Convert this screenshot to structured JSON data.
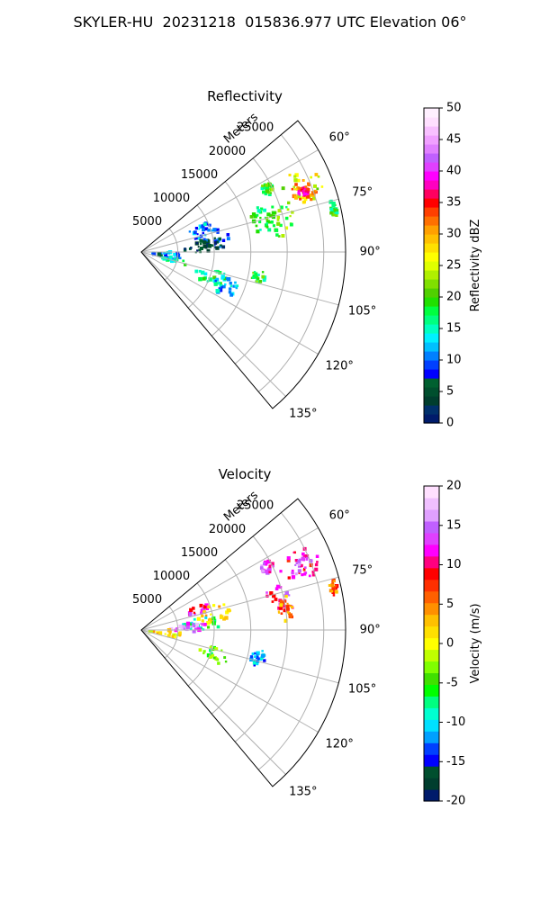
{
  "suptitle": "SKYLER-HU  20231218  015836.977 UTC Elevation 06°",
  "colors": {
    "grid": "#b0b0b0",
    "axis": "#000000",
    "ref_ramp": [
      "#001b6b",
      "#00306b",
      "#003e2e",
      "#004f2e",
      "#006030",
      "#0000ff",
      "#0040ff",
      "#0080ff",
      "#00c0ff",
      "#00f0ff",
      "#00ffc0",
      "#00ff80",
      "#00ff40",
      "#20e000",
      "#50d000",
      "#80e000",
      "#b0f000",
      "#e0ff00",
      "#ffff00",
      "#ffe000",
      "#ffc000",
      "#ffa000",
      "#ff7000",
      "#ff4000",
      "#ff0000",
      "#ff0060",
      "#ff00c0",
      "#ff00ff",
      "#e040ff",
      "#c060ff",
      "#e080ff",
      "#f0a0ff",
      "#f8c0ff",
      "#ffe0ff",
      "#fff0ff"
    ],
    "vel_ramp": [
      "#001b6b",
      "#003e2e",
      "#004f2e",
      "#0000ff",
      "#0040ff",
      "#00a0ff",
      "#00e0ff",
      "#00ffd0",
      "#00ff80",
      "#00ff00",
      "#40e000",
      "#80ff00",
      "#c0ff00",
      "#ffff00",
      "#ffe000",
      "#ffc000",
      "#ff9000",
      "#ff6000",
      "#ff3000",
      "#ff0000",
      "#ff0080",
      "#ff00ff",
      "#e040ff",
      "#c060ff",
      "#e0a0ff",
      "#f0c0ff",
      "#ffe0ff"
    ]
  },
  "chart_data": [
    {
      "type": "heatmap",
      "title": "Reflectivity",
      "range_label": "Meters",
      "range_ticks": [
        "5000",
        "10000",
        "15000",
        "20000",
        "25000"
      ],
      "range_values": [
        5000,
        10000,
        15000,
        20000,
        25000
      ],
      "r_max": 28000,
      "azimuth_ticks": [
        "60°",
        "75°",
        "90°",
        "105°",
        "120°",
        "135°"
      ],
      "azimuth_values": [
        60,
        75,
        90,
        105,
        120,
        135
      ],
      "theta_range": [
        50,
        140
      ],
      "grid": true,
      "colorbar": {
        "label": "Reflectivity dBZ",
        "range": [
          0,
          50
        ],
        "ticks": [
          "0",
          "5",
          "10",
          "15",
          "20",
          "25",
          "30",
          "35",
          "40",
          "45",
          "50"
        ]
      },
      "echoes": [
        {
          "az": [
            61,
            66
          ],
          "range": [
            18500,
            20200
          ],
          "value": 19
        },
        {
          "az": [
            62,
            76
          ],
          "range": [
            20500,
            26500
          ],
          "value": 25
        },
        {
          "az": [
            66,
            73
          ],
          "range": [
            22000,
            25500
          ],
          "value": 31
        },
        {
          "az": [
            68,
            71
          ],
          "range": [
            23000,
            24500
          ],
          "value": 36
        },
        {
          "az": [
            71,
            84
          ],
          "range": [
            17500,
            21500
          ],
          "value": 21
        },
        {
          "az": [
            68,
            81
          ],
          "range": [
            15500,
            18500
          ],
          "value": 18
        },
        {
          "az": [
            75,
            80
          ],
          "range": [
            26500,
            27500
          ],
          "value": 19
        },
        {
          "az": [
            65,
            77
          ],
          "range": [
            6500,
            10500
          ],
          "value": 11
        },
        {
          "az": [
            73,
            87
          ],
          "range": [
            8000,
            12500
          ],
          "value": 8
        },
        {
          "az": [
            80,
            91
          ],
          "range": [
            5500,
            11500
          ],
          "value": 4
        },
        {
          "az": [
            90,
            104
          ],
          "range": [
            1500,
            5500
          ],
          "value": 11
        },
        {
          "az": [
            100,
            108
          ],
          "range": [
            3000,
            6500
          ],
          "value": 16
        },
        {
          "az": [
            103,
            116
          ],
          "range": [
            8000,
            12500
          ],
          "value": 17
        },
        {
          "az": [
            106,
            118
          ],
          "range": [
            10500,
            14500
          ],
          "value": 12
        },
        {
          "az": [
            99,
            105
          ],
          "range": [
            15500,
            17500
          ],
          "value": 19
        }
      ]
    },
    {
      "type": "heatmap",
      "title": "Velocity",
      "range_label": "Meters",
      "range_ticks": [
        "5000",
        "10000",
        "15000",
        "20000",
        "25000"
      ],
      "range_values": [
        5000,
        10000,
        15000,
        20000,
        25000
      ],
      "r_max": 28000,
      "azimuth_ticks": [
        "60°",
        "75°",
        "90°",
        "105°",
        "120°",
        "135°"
      ],
      "azimuth_values": [
        60,
        75,
        90,
        105,
        120,
        135
      ],
      "theta_range": [
        50,
        140
      ],
      "grid": true,
      "colorbar": {
        "label": "Velocity (m/s)",
        "range": [
          -20,
          20
        ],
        "ticks": [
          "-20",
          "-15",
          "-10",
          "-5",
          "0",
          "5",
          "10",
          "15",
          "20"
        ]
      },
      "echoes": [
        {
          "az": [
            61,
            66
          ],
          "range": [
            18500,
            20200
          ],
          "value": 13
        },
        {
          "az": [
            62,
            76
          ],
          "range": [
            20500,
            26500
          ],
          "value": 10
        },
        {
          "az": [
            66,
            73
          ],
          "range": [
            22000,
            25500
          ],
          "value": 13
        },
        {
          "az": [
            71,
            84
          ],
          "range": [
            17500,
            21500
          ],
          "value": 12
        },
        {
          "az": [
            76,
            88
          ],
          "range": [
            19000,
            21000
          ],
          "value": 4
        },
        {
          "az": [
            75,
            80
          ],
          "range": [
            26500,
            27500
          ],
          "value": 6
        },
        {
          "az": [
            65,
            75
          ],
          "range": [
            6500,
            10000
          ],
          "value": 12
        },
        {
          "az": [
            70,
            85
          ],
          "range": [
            8000,
            12500
          ],
          "value": 1
        },
        {
          "az": [
            78,
            90
          ],
          "range": [
            5000,
            11500
          ],
          "value": -8
        },
        {
          "az": [
            82,
            92
          ],
          "range": [
            4000,
            9000
          ],
          "value": 15
        },
        {
          "az": [
            90,
            104
          ],
          "range": [
            1000,
            5500
          ],
          "value": 1
        },
        {
          "az": [
            103,
            116
          ],
          "range": [
            8000,
            12500
          ],
          "value": -4
        },
        {
          "az": [
            99,
            108
          ],
          "range": [
            15500,
            17500
          ],
          "value": -12
        }
      ]
    }
  ]
}
